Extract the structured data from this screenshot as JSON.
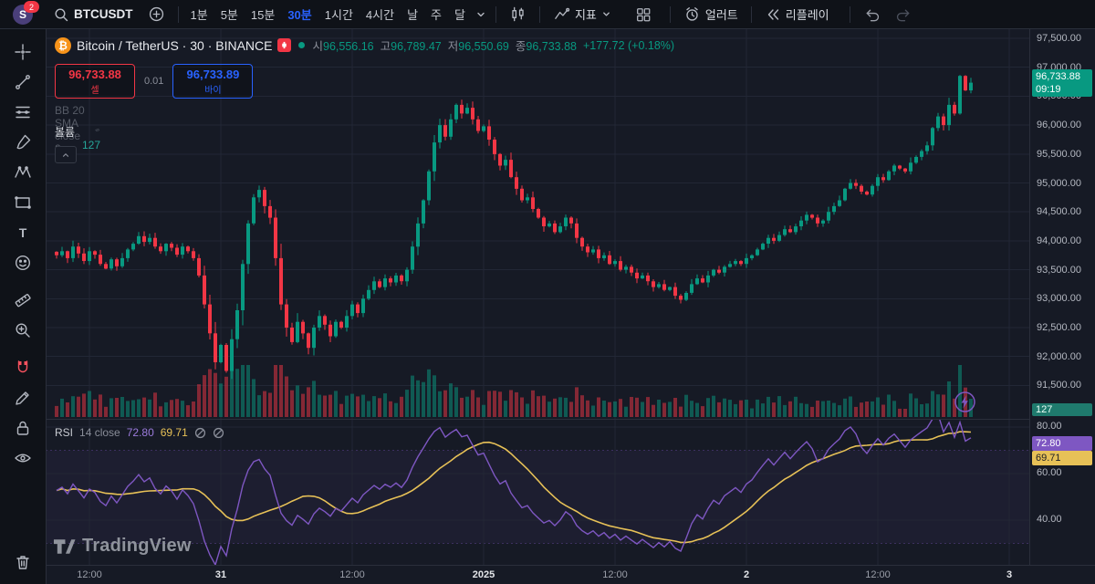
{
  "topbar": {
    "logo_letter": "S",
    "logo_badge": "2",
    "symbol": "BTCUSDT",
    "intervals": [
      {
        "label": "1분",
        "active": false
      },
      {
        "label": "5분",
        "active": false
      },
      {
        "label": "15분",
        "active": false
      },
      {
        "label": "30분",
        "active": true
      },
      {
        "label": "1시간",
        "active": false
      },
      {
        "label": "4시간",
        "active": false
      },
      {
        "label": "날",
        "active": false
      },
      {
        "label": "주",
        "active": false
      },
      {
        "label": "달",
        "active": false
      }
    ],
    "indicators_label": "지표",
    "alert_label": "얼러트",
    "replay_label": "리플레이"
  },
  "chart_header": {
    "title": "Bitcoin / TetherUS · 30 · BINANCE",
    "ohlc": {
      "o_label": "시",
      "o": "96,556.16",
      "h_label": "고",
      "h": "96,789.47",
      "l_label": "저",
      "l": "96,550.69",
      "c_label": "종",
      "c": "96,733.88",
      "change": "+177.72 (+0.18%)"
    }
  },
  "trade_panel": {
    "sell_price": "96,733.88",
    "sell_label": "셀",
    "spread": "0.01",
    "buy_price": "96,733.89",
    "buy_label": "바이"
  },
  "legends": {
    "bb": "BB 20 SMA close 2",
    "volume_title": "볼륨 · BTC",
    "volume_value": "127",
    "rsi_title": "RSI",
    "rsi_params": "14 close",
    "rsi_value": "72.80",
    "rsi_ma_value": "69.71"
  },
  "price_axis": {
    "last_price": "96,733.88",
    "countdown": "09:19",
    "volume_badge": "127",
    "rsi_badge": "72.80",
    "rsi_ma_badge": "69.71"
  },
  "watermark": "TradingView",
  "colors": {
    "up": "#089981",
    "down": "#f23645",
    "vol_up": "rgba(8,153,129,0.5)",
    "vol_down": "rgba(242,54,69,0.5)",
    "accent": "#2962ff",
    "rsi": "#7e57c2",
    "rsi_ma": "#e7c157",
    "last_badge_bg": "#089981",
    "vol_badge_bg": "#1f7a6d",
    "rsi_badge_bg": "#7e57c2",
    "rsi_ma_badge_bg": "#e7c157"
  },
  "chart_data": {
    "type": "candlestick",
    "symbol": "BTCUSDT",
    "exchange": "BINANCE",
    "interval": "30분",
    "last_close": 96733.88,
    "rsi_last": 72.8,
    "rsi_ma_last": 69.71,
    "price_ticks": [
      {
        "value": 97500,
        "label": "97,500.00"
      },
      {
        "value": 97000,
        "label": "97,000.00"
      },
      {
        "value": 96500,
        "label": "96,500.00"
      },
      {
        "value": 96000,
        "label": "96,000.00"
      },
      {
        "value": 95500,
        "label": "95,500.00"
      },
      {
        "value": 95000,
        "label": "95,000.00"
      },
      {
        "value": 94500,
        "label": "94,500.00"
      },
      {
        "value": 94000,
        "label": "94,000.00"
      },
      {
        "value": 93500,
        "label": "93,500.00"
      },
      {
        "value": 93000,
        "label": "93,000.00"
      },
      {
        "value": 92500,
        "label": "92,500.00"
      },
      {
        "value": 92000,
        "label": "92,000.00"
      },
      {
        "value": 91500,
        "label": "91,500.00"
      }
    ],
    "rsi_ticks": [
      {
        "value": 80,
        "label": "80.00"
      },
      {
        "value": 60,
        "label": "60.00"
      },
      {
        "value": 40,
        "label": "40.00"
      }
    ],
    "session_ticks": [
      {
        "idx": 6,
        "label": "12:00",
        "emph": false
      },
      {
        "idx": 30,
        "label": "31",
        "emph": true
      },
      {
        "idx": 54,
        "label": "12:00",
        "emph": false
      },
      {
        "idx": 78,
        "label": "2025",
        "emph": true
      },
      {
        "idx": 102,
        "label": "12:00",
        "emph": false
      },
      {
        "idx": 126,
        "label": "2",
        "emph": true
      },
      {
        "idx": 150,
        "label": "12:00",
        "emph": false
      },
      {
        "idx": 174,
        "label": "3",
        "emph": true
      }
    ],
    "closes": [
      93750,
      93820,
      93700,
      93900,
      93780,
      93650,
      93820,
      93760,
      93600,
      93520,
      93680,
      93560,
      93700,
      93850,
      93950,
      94080,
      93980,
      94050,
      93900,
      93820,
      93950,
      93880,
      93760,
      93900,
      93820,
      93700,
      93400,
      92900,
      92400,
      91900,
      92200,
      91750,
      92300,
      92800,
      93600,
      94300,
      94750,
      94880,
      94600,
      94400,
      93700,
      92900,
      92500,
      92250,
      92600,
      92400,
      92150,
      92500,
      92700,
      92550,
      92350,
      92600,
      92500,
      92700,
      92900,
      92750,
      93000,
      93150,
      93300,
      93200,
      93350,
      93280,
      93400,
      93300,
      93500,
      93900,
      94300,
      94700,
      95200,
      95700,
      96000,
      95800,
      96100,
      96350,
      96200,
      96300,
      96100,
      95900,
      95980,
      95750,
      95500,
      95300,
      95400,
      95100,
      94900,
      94700,
      94750,
      94550,
      94400,
      94250,
      94300,
      94150,
      94250,
      94400,
      94300,
      94050,
      93900,
      93800,
      93850,
      93700,
      93750,
      93600,
      93650,
      93500,
      93550,
      93450,
      93350,
      93400,
      93300,
      93200,
      93250,
      93150,
      93200,
      93050,
      92980,
      93100,
      93250,
      93350,
      93280,
      93400,
      93500,
      93450,
      93550,
      93600,
      93650,
      93600,
      93700,
      93750,
      93850,
      93950,
      94050,
      94000,
      94100,
      94200,
      94150,
      94250,
      94350,
      94450,
      94400,
      94300,
      94350,
      94500,
      94600,
      94700,
      94900,
      95000,
      94950,
      94850,
      94800,
      94950,
      95100,
      95050,
      95200,
      95300,
      95250,
      95200,
      95350,
      95450,
      95550,
      95650,
      95950,
      96150,
      96000,
      96350,
      96200,
      96850,
      96600,
      96733.88
    ]
  }
}
